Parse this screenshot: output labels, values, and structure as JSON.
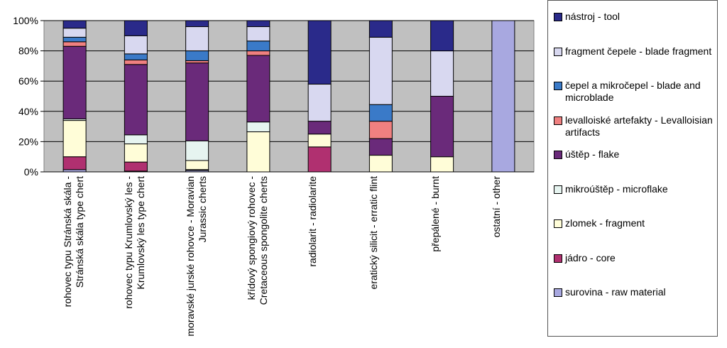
{
  "chart_data": {
    "type": "stacked_bar_percent",
    "categories": [
      "rohovec typu Stránská skála - Stránská skála type chert",
      "rohovec typu Krumlovský les - Krumlovský les type chert",
      "moravské jurské rohovce - Moravian Jurassic cherts",
      "křídový spongiový rohovec - Cretaceous spongolite cherts",
      "radiolarit - radiolarite",
      "eratický silicit - erratic flint",
      "přepálené - burnt",
      "ostatní - other"
    ],
    "series": [
      {
        "name": "surovina - raw material",
        "color": "#a8a8e0",
        "values": [
          1.5,
          0.5,
          1,
          0,
          0,
          0,
          0,
          100
        ]
      },
      {
        "name": "jádro - core",
        "color": "#b03070",
        "values": [
          8.5,
          6,
          0.5,
          0,
          16.5,
          0,
          0,
          0
        ]
      },
      {
        "name": "zlomek - fragment",
        "color": "#fffdd8",
        "values": [
          24,
          12,
          6,
          26.5,
          8.5,
          11,
          10,
          0
        ]
      },
      {
        "name": "mikroúštěp - microflake",
        "color": "#e6f4f0",
        "values": [
          1,
          6,
          13,
          6.5,
          0,
          0,
          0,
          0
        ]
      },
      {
        "name": "úštěp - flake",
        "color": "#6a2a7a",
        "values": [
          48,
          46.5,
          51.5,
          44,
          8.5,
          11,
          40,
          0
        ]
      },
      {
        "name": "levalloiské artefakty - Levalloisian artifacts",
        "color": "#f08080",
        "values": [
          3,
          3,
          1.5,
          3,
          0,
          11.5,
          0,
          0
        ]
      },
      {
        "name": "čepel a mikročepel - blade and microblade",
        "color": "#3a7ac8",
        "values": [
          3,
          4,
          6.5,
          6.5,
          0,
          11,
          0,
          0
        ]
      },
      {
        "name": "fragment čepele - blade fragment",
        "color": "#d8d8f0",
        "values": [
          6,
          12,
          16,
          9.5,
          24.5,
          44.5,
          30,
          0
        ]
      },
      {
        "name": "nástroj - tool",
        "color": "#2a2a8a",
        "values": [
          5,
          10,
          4,
          4,
          42,
          11,
          20,
          0
        ]
      }
    ],
    "ylim": [
      0,
      100
    ],
    "yticks": [
      {
        "value": 0,
        "label": "0%"
      },
      {
        "value": 20,
        "label": "20%"
      },
      {
        "value": 40,
        "label": "40%"
      },
      {
        "value": 60,
        "label": "60%"
      },
      {
        "value": 80,
        "label": "80%"
      },
      {
        "value": 100,
        "label": "100%"
      }
    ],
    "grid": true
  }
}
